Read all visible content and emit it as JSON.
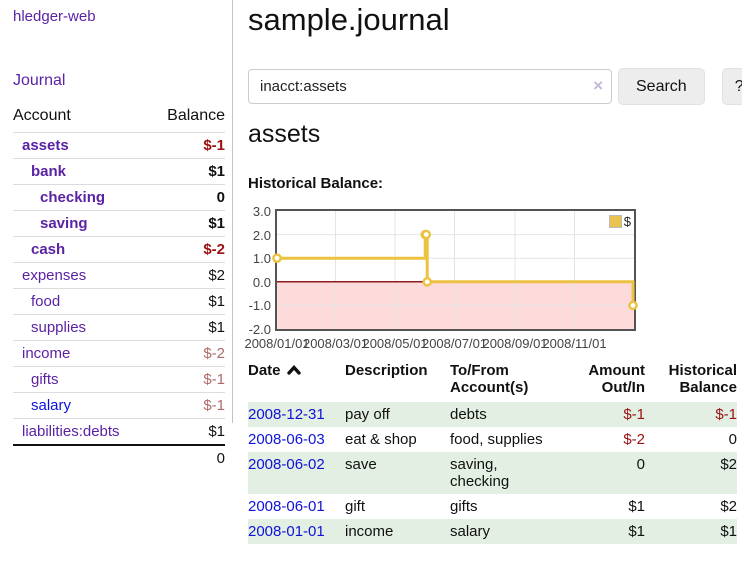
{
  "app": {
    "title": "hledger-web"
  },
  "sidebar": {
    "journal_link": "Journal",
    "headers": {
      "account": "Account",
      "balance": "Balance"
    },
    "accounts": [
      {
        "name": "assets",
        "depth": 1,
        "balance": "$-1",
        "bold": true,
        "balance_tone": "neg-strong",
        "link_color": "purple"
      },
      {
        "name": "bank",
        "depth": 2,
        "balance": "$1",
        "bold": true,
        "balance_tone": "normal",
        "link_color": "purple"
      },
      {
        "name": "checking",
        "depth": 3,
        "balance": "0",
        "bold": true,
        "balance_tone": "normal",
        "link_color": "purple"
      },
      {
        "name": "saving",
        "depth": 3,
        "balance": "$1",
        "bold": true,
        "balance_tone": "normal",
        "link_color": "purple"
      },
      {
        "name": "cash",
        "depth": 2,
        "balance": "$-2",
        "bold": true,
        "balance_tone": "neg-strong",
        "link_color": "purple"
      },
      {
        "name": "expenses",
        "depth": 1,
        "balance": "$2",
        "bold": false,
        "balance_tone": "normal",
        "link_color": "purple"
      },
      {
        "name": "food",
        "depth": 2,
        "balance": "$1",
        "bold": false,
        "balance_tone": "normal",
        "link_color": "purple"
      },
      {
        "name": "supplies",
        "depth": 2,
        "balance": "$1",
        "bold": false,
        "balance_tone": "normal",
        "link_color": "purple"
      },
      {
        "name": "income",
        "depth": 1,
        "balance": "$-2",
        "bold": false,
        "balance_tone": "neg-soft",
        "link_color": "purple"
      },
      {
        "name": "gifts",
        "depth": 2,
        "balance": "$-1",
        "bold": false,
        "balance_tone": "neg-soft",
        "link_color": "purple"
      },
      {
        "name": "salary",
        "depth": 2,
        "balance": "$-1",
        "bold": false,
        "balance_tone": "neg-soft",
        "link_color": "blue"
      },
      {
        "name": "liabilities:debts",
        "depth": 1,
        "balance": "$1",
        "bold": false,
        "balance_tone": "normal",
        "link_color": "purple"
      }
    ],
    "total": "0"
  },
  "header": {
    "title": "sample.journal"
  },
  "search": {
    "value": "inacct:assets",
    "clear_icon": "×",
    "button_label": "Search",
    "help_label": "?"
  },
  "account_page": {
    "heading": "assets",
    "chart_label": "Historical Balance:"
  },
  "chart_data": {
    "type": "line",
    "step": true,
    "title": "Historical Balance",
    "legend": {
      "position": "top-right",
      "entries": [
        "$"
      ]
    },
    "series": [
      {
        "name": "$",
        "color": "#edc240",
        "points": [
          [
            "2008-01-01",
            1
          ],
          [
            "2008-06-01",
            2
          ],
          [
            "2008-06-02",
            2
          ],
          [
            "2008-06-03",
            0
          ],
          [
            "2008-12-31",
            -1
          ]
        ]
      }
    ],
    "x_range": [
      "2008-01-01",
      "2009-01-01"
    ],
    "xticks": [
      "2008/01/01",
      "2008/03/01",
      "2008/05/01",
      "2008/07/01",
      "2008/09/01",
      "2008/11/01"
    ],
    "yticks": [
      "3.0",
      "2.0",
      "1.0",
      "0.0",
      "-1.0",
      "-2.0"
    ],
    "ylim": [
      -2,
      3
    ],
    "grid": true,
    "zero_line_color": "#8f1a1a",
    "negative_region_color": "#fcdbda"
  },
  "register": {
    "sort": "asc",
    "headers": {
      "date": "Date",
      "description": "Description",
      "accounts": "To/From Account(s)",
      "amount": "Amount Out/In",
      "historical": "Historical Balance"
    },
    "rows": [
      {
        "date": "2008-12-31",
        "description": "pay off",
        "accounts": "debts",
        "amount": "$-1",
        "amount_tone": "neg-strong",
        "historical": "$-1",
        "historical_tone": "neg-strong",
        "shade": true
      },
      {
        "date": "2008-06-03",
        "description": "eat & shop",
        "accounts": "food, supplies",
        "amount": "$-2",
        "amount_tone": "neg-strong",
        "historical": "0",
        "historical_tone": "normal",
        "shade": false
      },
      {
        "date": "2008-06-02",
        "description": "save",
        "accounts": "saving, checking",
        "amount": "0",
        "amount_tone": "normal",
        "historical": "$2",
        "historical_tone": "normal",
        "shade": true
      },
      {
        "date": "2008-06-01",
        "description": "gift",
        "accounts": "gifts",
        "amount": "$1",
        "amount_tone": "normal",
        "historical": "$2",
        "historical_tone": "normal",
        "shade": false
      },
      {
        "date": "2008-01-01",
        "description": "income",
        "accounts": "salary",
        "amount": "$1",
        "amount_tone": "normal",
        "historical": "$1",
        "historical_tone": "normal",
        "shade": true
      }
    ]
  }
}
